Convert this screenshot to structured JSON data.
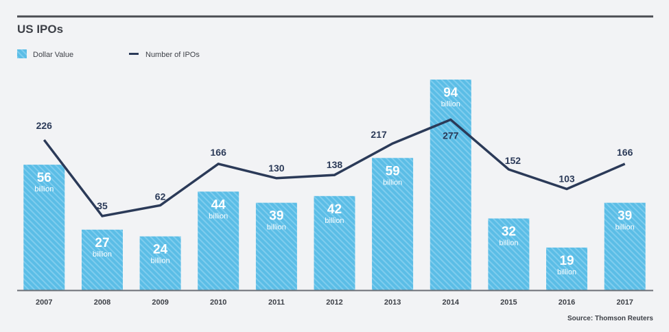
{
  "colors": {
    "background": "#f2f3f5",
    "bar": "#5bbde6",
    "bar_stripe": "#7fcdee",
    "line": "#2b3a58",
    "text": "#3d4047",
    "rule": "#4a4c52"
  },
  "chart_data": {
    "type": "bar",
    "title": "US IPOs",
    "xlabel": "",
    "ylabel": "",
    "categories": [
      "2007",
      "2008",
      "2009",
      "2010",
      "2011",
      "2012",
      "2013",
      "2014",
      "2015",
      "2016",
      "2017"
    ],
    "series": [
      {
        "name": "Dollar Value",
        "type": "bar",
        "unit": "billion",
        "values": [
          56,
          27,
          24,
          44,
          39,
          42,
          59,
          94,
          32,
          19,
          39
        ]
      },
      {
        "name": "Number of IPOs",
        "type": "line",
        "values": [
          226,
          35,
          62,
          166,
          130,
          138,
          217,
          277,
          152,
          103,
          166
        ]
      }
    ],
    "bar_ylim": [
      0,
      100
    ],
    "line_ylim": [
      0,
      520
    ],
    "grid": false,
    "legend": "top-left",
    "source": "Source: Thomson Reuters"
  }
}
